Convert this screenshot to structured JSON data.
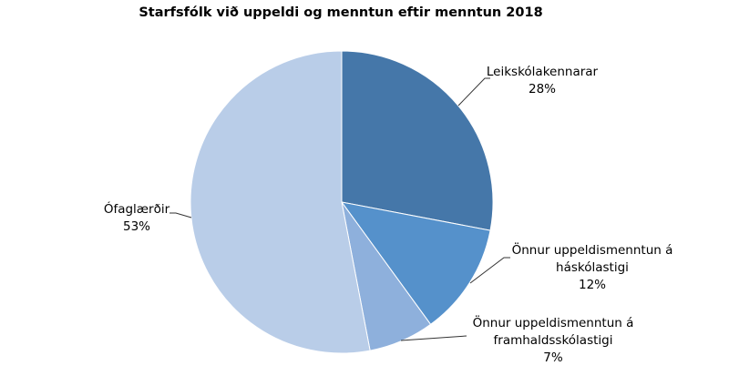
{
  "chart_data": {
    "type": "pie",
    "title": "Starfsfólk við uppeldi og menntun eftir menntun 2018",
    "categories": [
      "Leikskólakennarar",
      "Önnur uppeldismenntun á háskólastigi",
      "Önnur uppeldismenntun á framhaldsskólastigi",
      "Ófaglærðir"
    ],
    "values": [
      28,
      12,
      7,
      53
    ],
    "unit": "%",
    "colors": [
      "#4577a9",
      "#5591cb",
      "#8eb0dc",
      "#b9cde8"
    ],
    "start_angle_deg": 0,
    "direction": "clockwise",
    "legend": "none (data labels with leader lines)"
  },
  "labels": [
    {
      "name": "Leikskólakennarar",
      "pct": "28%"
    },
    {
      "name": "Önnur uppeldismenntun á",
      "name2": "háskólastigi",
      "pct": "12%"
    },
    {
      "name": "Önnur uppeldismenntun á",
      "name2": "framhaldsskólastigi",
      "pct": "7%"
    },
    {
      "name": "Ófaglærðir",
      "pct": "53%"
    }
  ]
}
